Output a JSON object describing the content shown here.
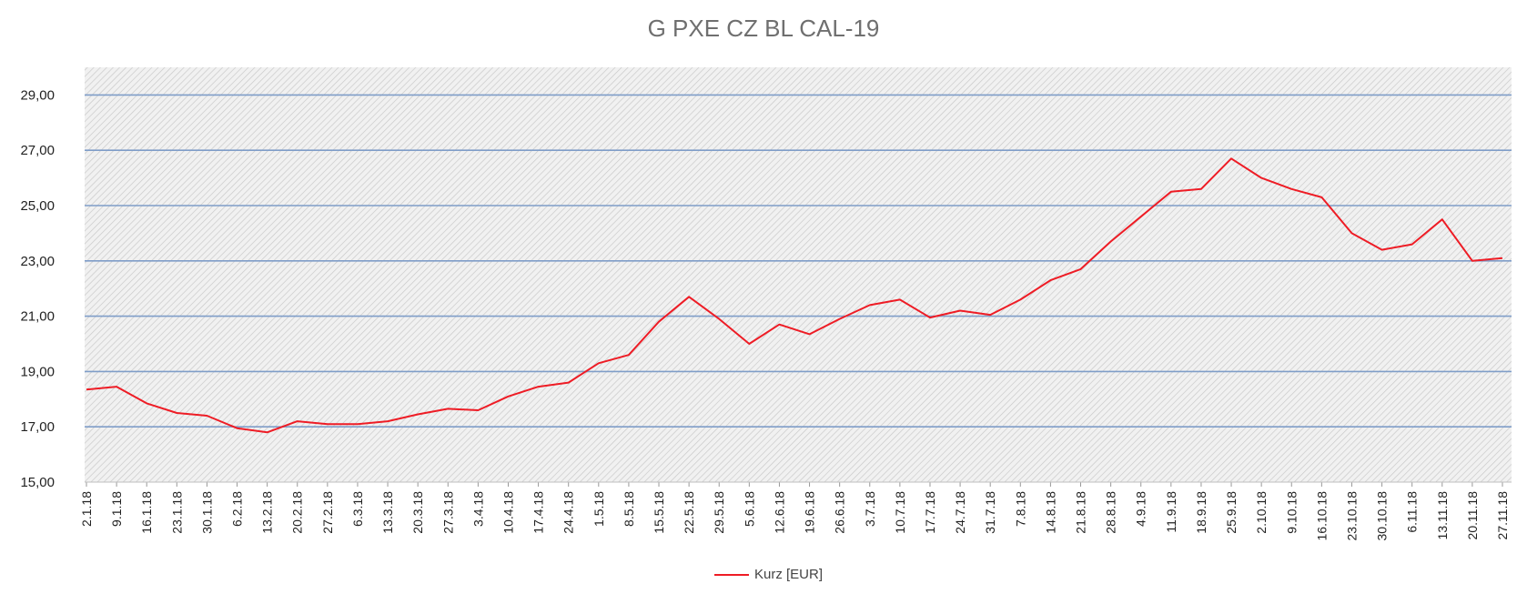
{
  "chart_data": {
    "type": "line",
    "title": "G PXE CZ BL CAL-19",
    "xlabel": "",
    "ylabel": "",
    "ylim": [
      15,
      30
    ],
    "yticks": [
      "15,00",
      "17,00",
      "19,00",
      "21,00",
      "23,00",
      "25,00",
      "27,00",
      "29,00"
    ],
    "ytick_values": [
      15,
      17,
      19,
      21,
      23,
      25,
      27,
      29
    ],
    "grid": true,
    "legend_position": "bottom",
    "series_color": "#ee1c25",
    "x": [
      "2.1.18",
      "9.1.18",
      "16.1.18",
      "23.1.18",
      "30.1.18",
      "6.2.18",
      "13.2.18",
      "20.2.18",
      "27.2.18",
      "6.3.18",
      "13.3.18",
      "20.3.18",
      "27.3.18",
      "3.4.18",
      "10.4.18",
      "17.4.18",
      "24.4.18",
      "1.5.18",
      "8.5.18",
      "15.5.18",
      "22.5.18",
      "29.5.18",
      "5.6.18",
      "12.6.18",
      "19.6.18",
      "26.6.18",
      "3.7.18",
      "10.7.18",
      "17.7.18",
      "24.7.18",
      "31.7.18",
      "7.8.18",
      "14.8.18",
      "21.8.18",
      "28.8.18",
      "4.9.18",
      "11.9.18",
      "18.9.18",
      "25.9.18",
      "2.10.18",
      "9.10.18",
      "16.10.18",
      "23.10.18",
      "30.10.18",
      "6.11.18",
      "13.11.18",
      "20.11.18",
      "27.11.18"
    ],
    "series": [
      {
        "name": "Kurz [EUR]",
        "values": [
          18.35,
          18.45,
          17.85,
          17.5,
          17.4,
          16.95,
          16.8,
          17.2,
          17.1,
          17.1,
          17.2,
          17.45,
          17.65,
          17.6,
          18.1,
          18.45,
          18.6,
          19.3,
          19.6,
          20.8,
          21.7,
          20.9,
          20.0,
          20.7,
          20.35,
          20.9,
          21.4,
          21.6,
          20.95,
          21.2,
          21.05,
          21.6,
          22.3,
          22.7,
          23.7,
          24.6,
          25.5,
          25.6,
          26.7,
          26.0,
          25.6,
          25.3,
          24.0,
          23.4,
          23.6,
          24.5,
          23.0,
          23.1
        ]
      }
    ]
  },
  "legend": {
    "label": "Kurz [EUR]"
  }
}
